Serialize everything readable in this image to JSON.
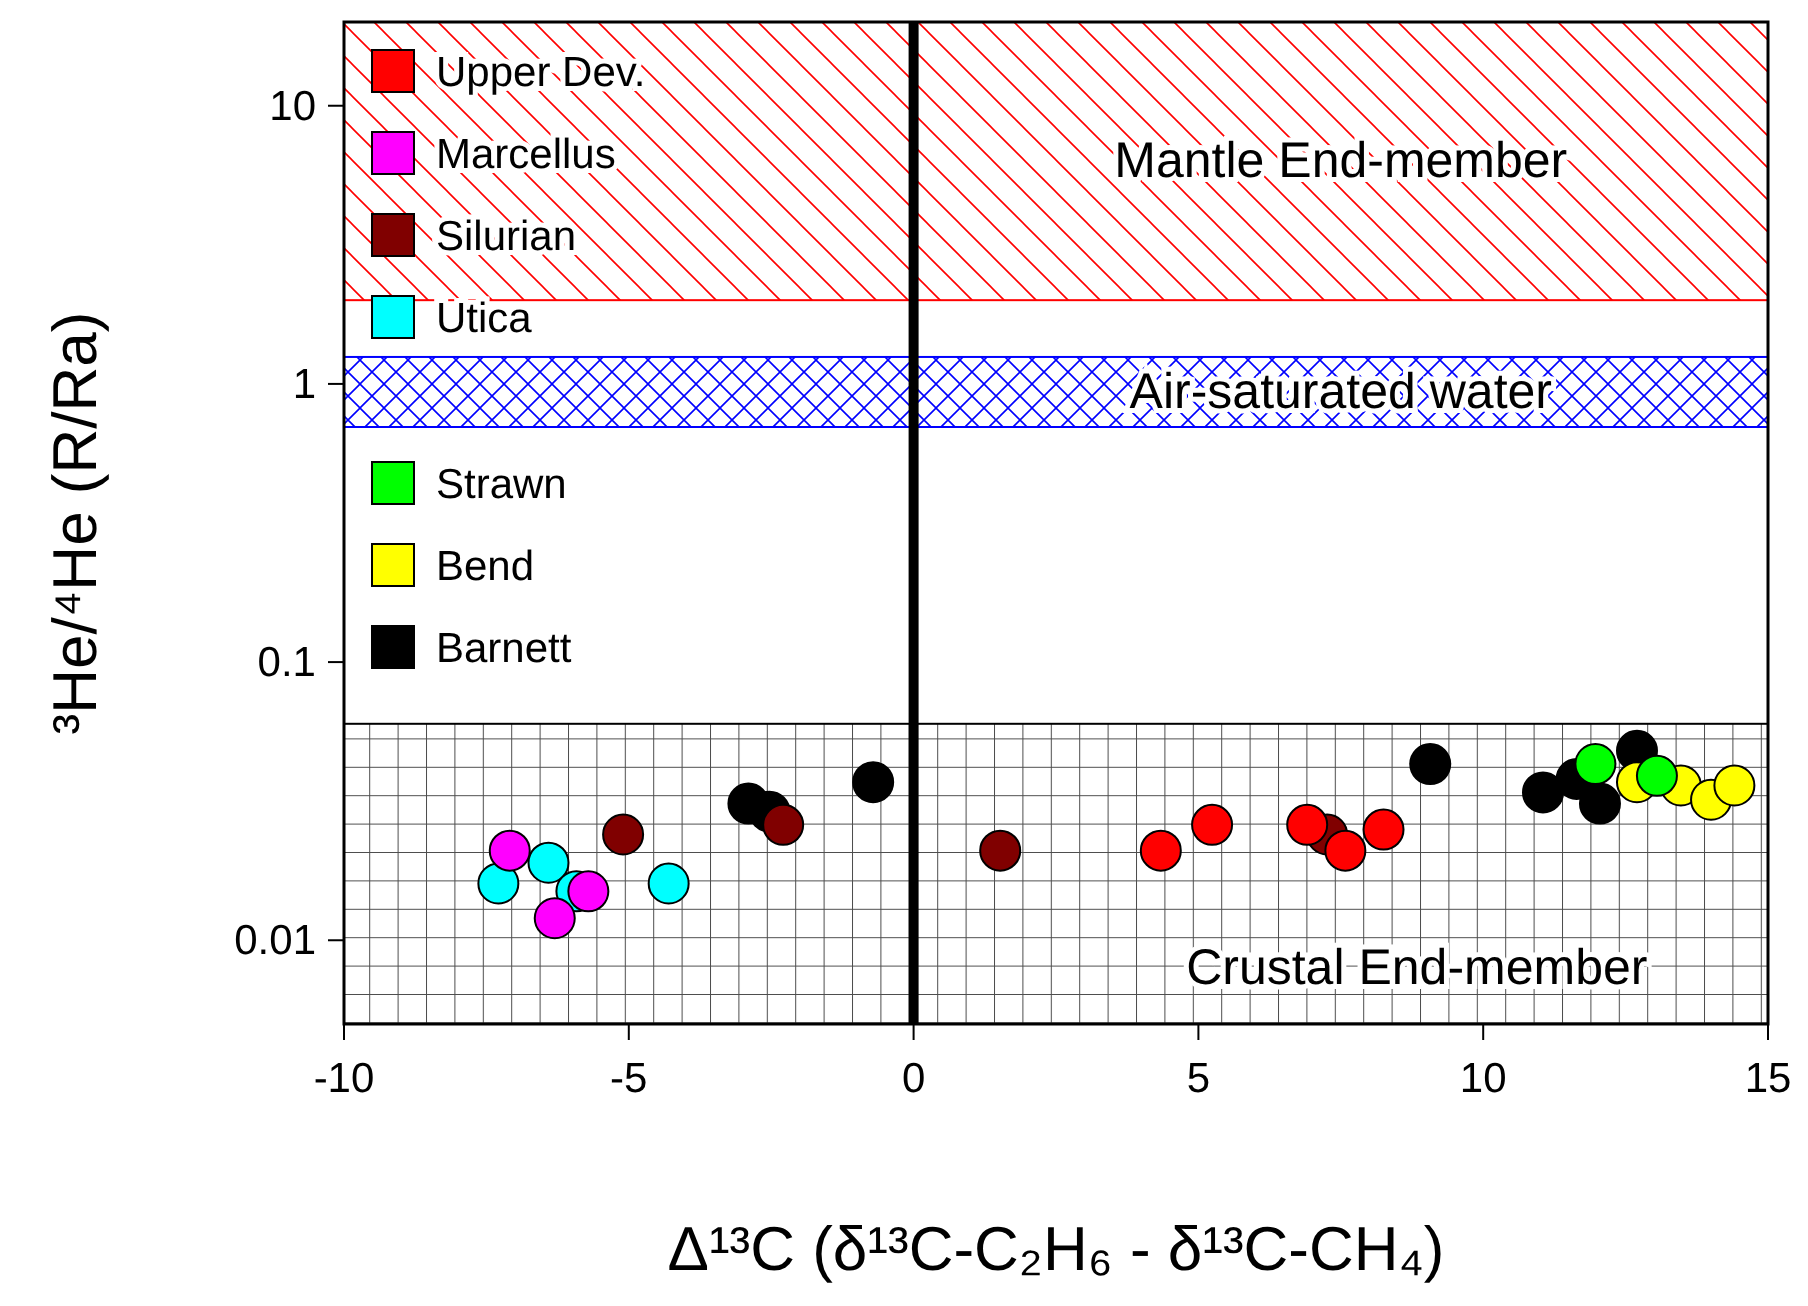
{
  "chart_data": {
    "type": "scatter",
    "xlabel": "Δ¹³C (δ¹³C-C₂H₆ - δ¹³C-CH₄)",
    "ylabel": "³He/⁴He (R/Ra)",
    "xlim": [
      -10,
      15
    ],
    "xticks": [
      -10,
      -5,
      0,
      5,
      10,
      15
    ],
    "ylim": [
      0.005,
      20
    ],
    "yticks": [
      0.01,
      0.1,
      1,
      10
    ],
    "log": "y",
    "grid": false,
    "legend": "top left",
    "marker": "circle",
    "series": [
      {
        "name": "Upper Dev.",
        "color": "#ff0000",
        "x": [
          4.34,
          5.24,
          6.91,
          7.58,
          8.25
        ],
        "values": [
          0.021,
          0.026,
          0.026,
          0.021,
          0.025
        ]
      },
      {
        "name": "Marcellus",
        "color": "#ff00ff",
        "x": [
          -7.09,
          -5.71,
          -6.3
        ],
        "values": [
          0.021,
          0.015,
          0.012
        ]
      },
      {
        "name": "Silurian",
        "color": "#800000",
        "x": [
          -5.1,
          -2.29,
          1.52,
          7.26
        ],
        "values": [
          0.024,
          0.026,
          0.021,
          0.024
        ]
      },
      {
        "name": "Utica",
        "color": "#00ffff",
        "x": [
          -7.29,
          -6.41,
          -5.92,
          -4.3
        ],
        "values": [
          0.016,
          0.019,
          0.015,
          0.016
        ]
      },
      {
        "name": "Strawn",
        "color": "#00ff00",
        "x": [
          11.97,
          13.05
        ],
        "values": [
          0.043,
          0.039
        ]
      },
      {
        "name": "Bend",
        "color": "#ffff00",
        "x": [
          12.7,
          13.47,
          14.0,
          14.41
        ],
        "values": [
          0.037,
          0.036,
          0.032,
          0.036
        ]
      },
      {
        "name": "Barnett",
        "color": "#000000",
        "x": [
          -2.9,
          -2.53,
          -0.71,
          9.07,
          11.05,
          11.64,
          12.05,
          12.7
        ],
        "values": [
          0.031,
          0.029,
          0.037,
          0.043,
          0.034,
          0.038,
          0.031,
          0.048
        ]
      }
    ],
    "ref_lines": [
      {
        "axis": "x",
        "value": 0,
        "color": "#000000"
      }
    ],
    "bands": [
      {
        "axis": "y",
        "from": 2,
        "to": 20,
        "label": "Mantle End-member",
        "color": "#ff0000"
      },
      {
        "axis": "y",
        "from": 0.7,
        "to": 1.25,
        "label": "Air-saturated water",
        "color": "#0000ff"
      },
      {
        "axis": "y",
        "from": 0.005,
        "to": 0.06,
        "label": "Crustal End-member",
        "color": "#000000"
      }
    ]
  }
}
